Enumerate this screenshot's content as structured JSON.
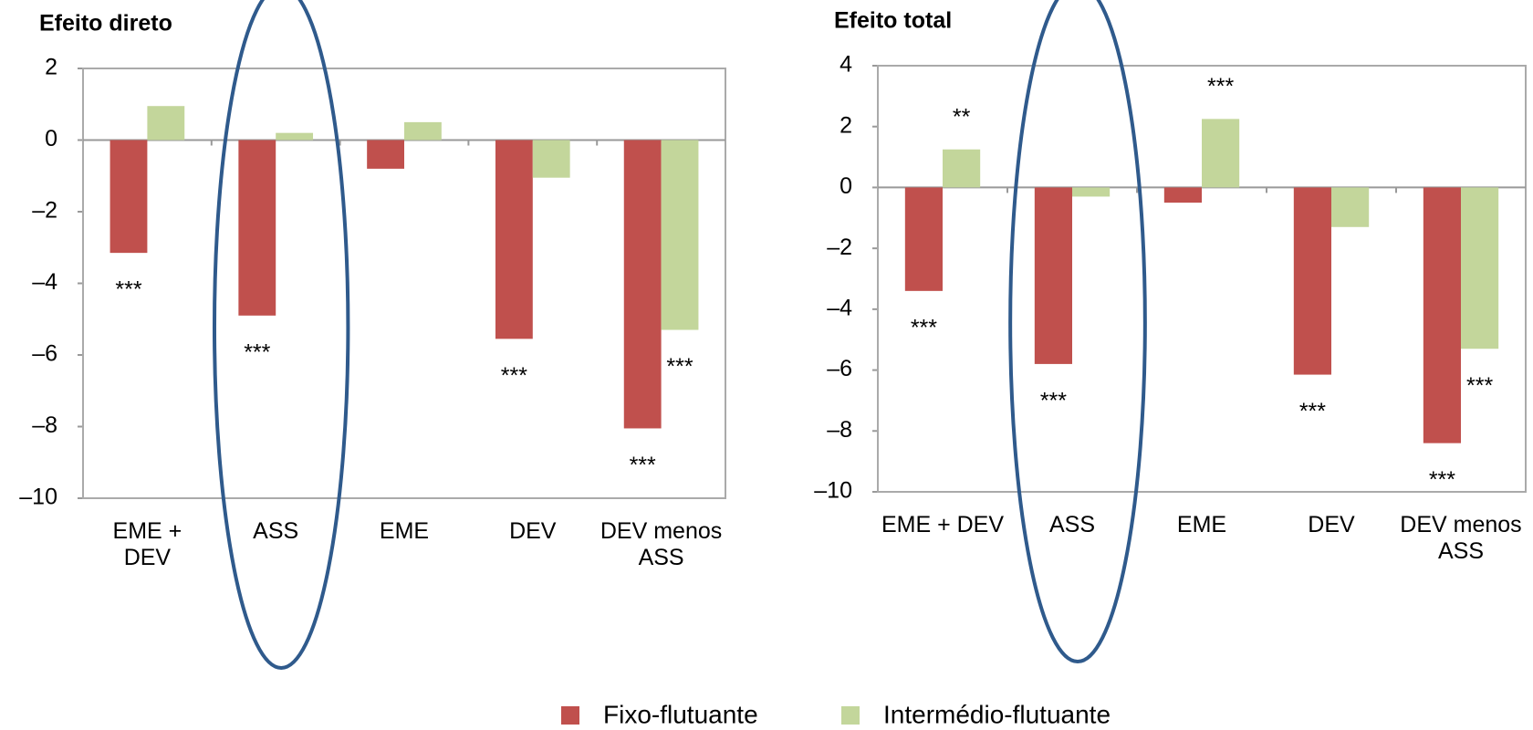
{
  "chart_data": [
    {
      "type": "bar",
      "title": "Efeito direto",
      "categories": [
        "EME + DEV",
        "ASS",
        "EME",
        "DEV",
        "DEV menos ASS"
      ],
      "series": [
        {
          "name": "Fixo-flutuante",
          "color": "#c0504d",
          "values": [
            -3.15,
            -4.9,
            -0.8,
            -5.55,
            -8.05
          ],
          "annotations": [
            "***",
            "***",
            null,
            "***",
            "***"
          ]
        },
        {
          "name": "Intermédio-flutuante",
          "color": "#c3d69b",
          "values": [
            0.95,
            0.2,
            0.5,
            -1.05,
            -5.3
          ],
          "annotations": [
            null,
            null,
            null,
            null,
            "***"
          ]
        }
      ],
      "ylim": [
        -10,
        2
      ],
      "yticks": [
        {
          "value": -10,
          "label": "–10"
        },
        {
          "value": -8,
          "label": "–8"
        },
        {
          "value": -6,
          "label": "–6"
        },
        {
          "value": -4,
          "label": "–4"
        },
        {
          "value": -2,
          "label": "–2"
        },
        0,
        2
      ],
      "highlight": "ASS"
    },
    {
      "type": "bar",
      "title": "Efeito total",
      "categories": [
        "EME + DEV",
        "ASS",
        "EME",
        "DEV",
        "DEV menos ASS"
      ],
      "series": [
        {
          "name": "Fixo-flutuante",
          "color": "#c0504d",
          "values": [
            -3.4,
            -5.8,
            -0.5,
            -6.15,
            -8.4
          ],
          "annotations": [
            "***",
            "***",
            null,
            "***",
            "***"
          ]
        },
        {
          "name": "Intermédio-flutuante",
          "color": "#c3d69b",
          "values": [
            1.25,
            -0.3,
            2.25,
            -1.3,
            -5.3
          ],
          "annotations": [
            "**",
            null,
            "***",
            null,
            "***"
          ]
        }
      ],
      "ylim": [
        -10,
        4
      ],
      "yticks": [
        {
          "value": -10,
          "label": "–10"
        },
        {
          "value": -8,
          "label": "–8"
        },
        {
          "value": -6,
          "label": "–6"
        },
        {
          "value": -4,
          "label": "–4"
        },
        {
          "value": -2,
          "label": "–2"
        },
        0,
        2,
        4
      ],
      "highlight": "ASS"
    }
  ]
}
